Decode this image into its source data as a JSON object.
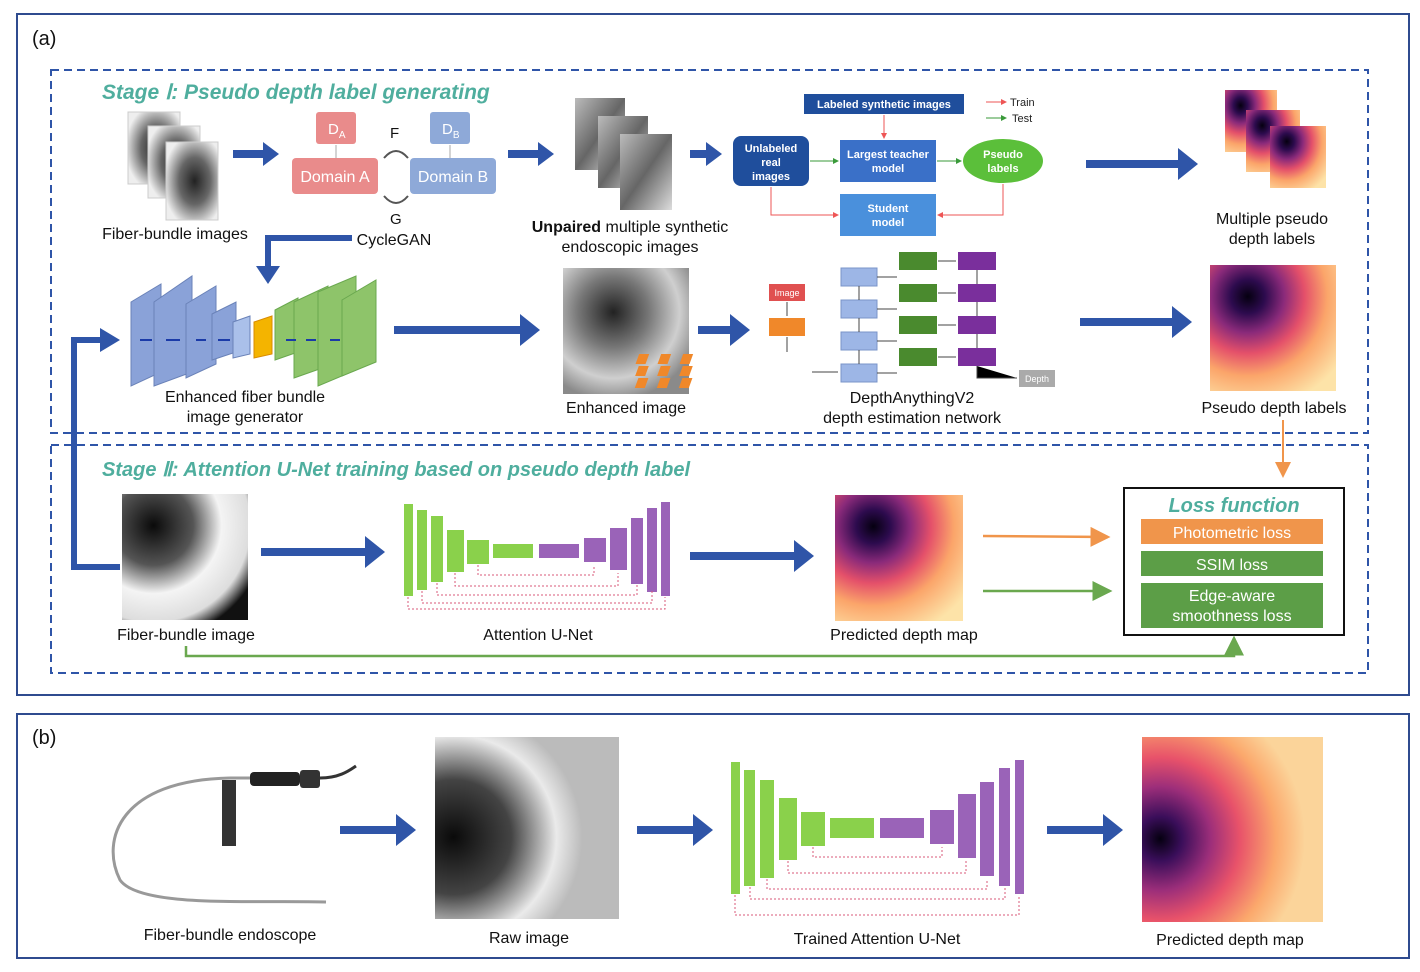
{
  "panel_a": {
    "label": "(a)",
    "stage1": "Stage Ⅰ: Pseudo depth label generating",
    "stage2": "Stage Ⅱ: Attention U-Net training based on pseudo depth label",
    "fiber_bundle_images": "Fiber-bundle images",
    "domain_a_box": "D",
    "domain_a_sub": "A",
    "domain_b_box": "D",
    "domain_b_sub": "B",
    "domain_a": "Domain A",
    "domain_b": "Domain B",
    "f_label": "F",
    "g_label": "G",
    "cyclegan": "CycleGAN",
    "unpaired_bold": "Unpaired",
    "unpaired_rest": " multiple synthetic",
    "unpaired_line2": "endoscopic images",
    "labeled_synth": "Labeled synthetic images",
    "legend_train": "Train",
    "legend_test": "Test",
    "unlabeled_1": "Unlabeled",
    "unlabeled_2": "real",
    "unlabeled_3": "images",
    "teacher_1": "Largest teacher",
    "teacher_2": "model",
    "pseudo_1": "Pseudo",
    "pseudo_2": "labels",
    "student_1": "Student",
    "student_2": "model",
    "multi_pseudo_1": "Multiple pseudo",
    "multi_pseudo_2": "depth labels",
    "generator_1": "Enhanced fiber bundle",
    "generator_2": "image generator",
    "enhanced_image": "Enhanced image",
    "dav2_image": "Image",
    "dav2_depth": "Depth",
    "dav2_1": "DepthAnythingV2",
    "dav2_2": "depth estimation network",
    "pseudo_depth_labels": "Pseudo depth labels",
    "fiber_bundle_image": "Fiber-bundle image",
    "attention_unet": "Attention U-Net",
    "predicted_depth": "Predicted depth map",
    "loss_title": "Loss function",
    "loss_photometric": "Photometric loss",
    "loss_ssim": "SSIM loss",
    "loss_edge_1": "Edge-aware",
    "loss_edge_2": "smoothness loss"
  },
  "panel_b": {
    "label": "(b)",
    "endoscope": "Fiber-bundle endoscope",
    "raw_image": "Raw image",
    "trained_unet": "Trained Attention U-Net",
    "predicted_depth": "Predicted depth map"
  },
  "colors": {
    "frame": "#2f4b8f",
    "arrow_blue": "#2f55a8",
    "stage_text": "#4fae9e",
    "green_unet": "#8ad14b",
    "purple_unet": "#9a63b8",
    "orange_loss": "#f0954b",
    "green_loss": "#5c9e47"
  }
}
